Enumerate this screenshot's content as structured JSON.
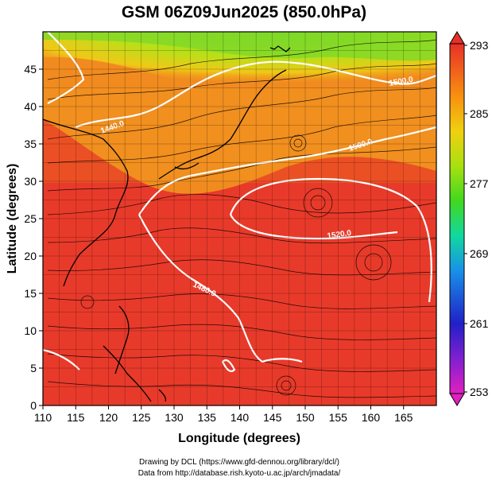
{
  "title": "GSM 06Z09Jun2025 (850.0hPa)",
  "x_axis": {
    "label": "Longitude (degrees)",
    "ticks": [
      "110",
      "115",
      "120",
      "125",
      "130",
      "135",
      "140",
      "145",
      "150",
      "155",
      "160",
      "165"
    ],
    "range": [
      110,
      170
    ]
  },
  "y_axis": {
    "label": "Latitude  (degrees)",
    "ticks": [
      "0",
      "5",
      "10",
      "15",
      "20",
      "25",
      "30",
      "35",
      "40",
      "45"
    ],
    "range": [
      0,
      50
    ]
  },
  "colorbar": {
    "ticks": [
      "253",
      "261",
      "269",
      "277",
      "285",
      "293"
    ],
    "range": [
      253,
      293
    ],
    "colors": [
      "#e020c0",
      "#8020d0",
      "#2020c8",
      "#2060e0",
      "#10b8e8",
      "#10d8a0",
      "#40d820",
      "#a0e010",
      "#f0e010",
      "#f8a010",
      "#f06020",
      "#e83028"
    ]
  },
  "contour_labels": [
    "1440.0",
    "1500.0",
    "1500.0",
    "1520.0",
    "1480.0"
  ],
  "credits": {
    "line1": "Drawing by DCL (https://www.gfd-dennou.org/library/dcl/)",
    "line2": "Data from http://database.rish.kyoto-u.ac.jp/arch/jmadata/"
  },
  "colors": {
    "hot": "#e83a2a",
    "warm": "#f07020",
    "mild": "#f8c020",
    "cool": "#90dc20",
    "coastline": "#000000",
    "contour": "#ffffff"
  }
}
